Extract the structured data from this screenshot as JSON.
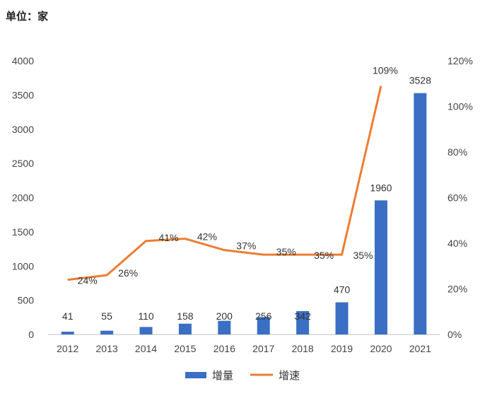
{
  "chart_data": {
    "type": "bar+line",
    "unit_label": "单位：家",
    "categories": [
      "2012",
      "2013",
      "2014",
      "2015",
      "2016",
      "2017",
      "2018",
      "2019",
      "2020",
      "2021"
    ],
    "series": [
      {
        "name": "增量",
        "type": "bar",
        "axis": "left",
        "color": "#3a6fc4",
        "values": [
          41,
          55,
          110,
          158,
          200,
          256,
          342,
          470,
          1960,
          3528
        ],
        "labels": [
          "41",
          "55",
          "110",
          "158",
          "200",
          "256",
          "342",
          "470",
          "1960",
          "3528"
        ]
      },
      {
        "name": "增速",
        "type": "line",
        "axis": "right",
        "color": "#ed7d31",
        "values": [
          24,
          26,
          41,
          42,
          37,
          35,
          35,
          35,
          109,
          null
        ],
        "labels": [
          "24%",
          "26%",
          "41%",
          "42%",
          "37%",
          "35%",
          "35%",
          "35%",
          "109%",
          ""
        ]
      }
    ],
    "y_left": {
      "min": 0,
      "max": 4000,
      "ticks": [
        "0",
        "500",
        "1000",
        "1500",
        "2000",
        "2500",
        "3000",
        "3500",
        "4000"
      ]
    },
    "y_right": {
      "min": 0,
      "max": 120,
      "ticks": [
        "0%",
        "20%",
        "40%",
        "60%",
        "80%",
        "100%",
        "120%"
      ]
    },
    "grid": false,
    "legend": "bottom"
  }
}
